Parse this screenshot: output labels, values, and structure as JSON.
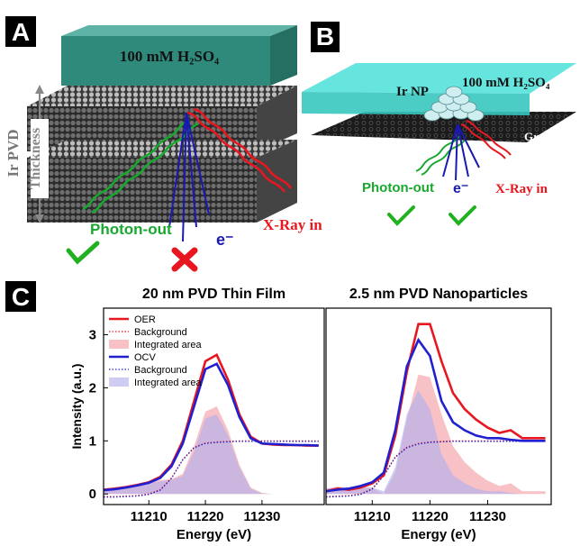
{
  "panel_labels": [
    "A",
    "B",
    "C"
  ],
  "schematic_a": {
    "electrolyte": "100 mM H₂SO₄",
    "material": "Ir PVD",
    "dimension": "Thickness",
    "photon_out": "Photon-out",
    "xray_in": "X-Ray in",
    "electron": "e⁻"
  },
  "schematic_b": {
    "particle": "Ir NP",
    "electrolyte": "100 mM H₂SO₄",
    "substrate": "Graphene",
    "photon_out": "Photon-out",
    "electron": "e⁻",
    "xray_in": "X-Ray in"
  },
  "chart_data": [
    {
      "type": "line",
      "title": "20 nm PVD Thin Film",
      "x_label": "Energy (eV)",
      "y_label": "Intensity (a.u.)",
      "x": [
        11202,
        11204,
        11206,
        11208,
        11210,
        11212,
        11214,
        11216,
        11218,
        11220,
        11222,
        11224,
        11226,
        11228,
        11230,
        11232,
        11234,
        11236,
        11238,
        11240
      ],
      "xlim": [
        11202,
        11241
      ],
      "xticks": [
        11210,
        11220,
        11230
      ],
      "ylim": [
        -0.2,
        3.5
      ],
      "yticks": [
        0,
        1,
        2,
        3
      ],
      "legend": "upper left",
      "series": [
        {
          "name": "Integrated area",
          "kind": "area",
          "color": "#f2a0a8",
          "values": [
            0.1,
            0.12,
            0.15,
            0.18,
            0.22,
            0.26,
            0.28,
            0.38,
            0.9,
            1.55,
            1.65,
            1.2,
            0.55,
            0.12,
            0.02,
            0,
            0,
            0,
            0,
            0
          ]
        },
        {
          "name": "Integrated area",
          "kind": "area",
          "color": "#b4b0ee",
          "values": [
            0.08,
            0.1,
            0.13,
            0.16,
            0.2,
            0.24,
            0.26,
            0.34,
            0.8,
            1.42,
            1.5,
            1.1,
            0.5,
            0.1,
            0.01,
            0,
            0,
            0,
            0,
            0
          ]
        },
        {
          "name": "Background",
          "kind": "dotted",
          "color": "#e8171f",
          "values": [
            -0.05,
            -0.05,
            -0.04,
            -0.03,
            0.0,
            0.08,
            0.3,
            0.65,
            0.88,
            0.96,
            0.98,
            0.99,
            1,
            1,
            1,
            1,
            1,
            1,
            1,
            1
          ]
        },
        {
          "name": "Background",
          "kind": "dotted",
          "color": "#2020d0",
          "values": [
            -0.06,
            -0.06,
            -0.05,
            -0.04,
            -0.01,
            0.07,
            0.29,
            0.64,
            0.87,
            0.95,
            0.97,
            0.98,
            0.99,
            0.99,
            0.99,
            0.99,
            0.99,
            0.99,
            0.99,
            0.99
          ]
        },
        {
          "name": "OER",
          "kind": "line",
          "color": "#e8171f",
          "values": [
            0.08,
            0.1,
            0.13,
            0.17,
            0.22,
            0.32,
            0.55,
            1.0,
            1.75,
            2.5,
            2.62,
            2.15,
            1.5,
            1.08,
            0.95,
            0.93,
            0.92,
            0.92,
            0.91,
            0.91
          ]
        },
        {
          "name": "OCV",
          "kind": "line",
          "color": "#2020d0",
          "values": [
            0.07,
            0.09,
            0.12,
            0.16,
            0.21,
            0.3,
            0.52,
            0.95,
            1.65,
            2.35,
            2.45,
            2.05,
            1.45,
            1.05,
            0.95,
            0.94,
            0.93,
            0.92,
            0.92,
            0.91
          ]
        }
      ],
      "legend_order": [
        4,
        2,
        0,
        5,
        3,
        1
      ]
    },
    {
      "type": "line",
      "title": "2.5 nm PVD Nanoparticles",
      "x_label": "Energy (eV)",
      "x": [
        11202,
        11204,
        11206,
        11208,
        11210,
        11212,
        11214,
        11216,
        11218,
        11220,
        11222,
        11224,
        11226,
        11228,
        11230,
        11232,
        11234,
        11236,
        11238,
        11240
      ],
      "xlim": [
        11202,
        11241
      ],
      "xticks": [
        11210,
        11220,
        11230
      ],
      "ylim": [
        -0.2,
        3.5
      ],
      "series": [
        {
          "kind": "area",
          "color": "#f2a0a8",
          "values": [
            0.1,
            0.14,
            0.11,
            0.12,
            0.1,
            0.0,
            0.4,
            1.4,
            2.25,
            2.2,
            1.5,
            0.9,
            0.6,
            0.4,
            0.25,
            0.15,
            0.2,
            0.05,
            0.05,
            0.05
          ]
        },
        {
          "kind": "area",
          "color": "#b4b0ee",
          "values": [
            0.1,
            0.12,
            0.13,
            0.15,
            0.12,
            0.05,
            0.5,
            1.5,
            1.95,
            1.6,
            0.75,
            0.35,
            0.2,
            0.1,
            0.05,
            0.05,
            0.02,
            0,
            0,
            0
          ]
        },
        {
          "kind": "dotted",
          "color": "#e8171f",
          "values": [
            -0.05,
            -0.04,
            -0.03,
            0,
            0.1,
            0.35,
            0.7,
            0.88,
            0.95,
            0.98,
            0.99,
            1,
            1,
            1,
            1,
            1,
            1,
            1,
            1,
            1
          ]
        },
        {
          "kind": "dotted",
          "color": "#2020d0",
          "values": [
            -0.06,
            -0.05,
            -0.04,
            -0.01,
            0.09,
            0.34,
            0.69,
            0.87,
            0.94,
            0.97,
            0.98,
            0.99,
            0.99,
            0.99,
            0.99,
            0.99,
            0.99,
            0.99,
            0.99,
            0.99
          ]
        },
        {
          "kind": "line",
          "color": "#e8171f",
          "values": [
            0.05,
            0.1,
            0.08,
            0.12,
            0.2,
            0.35,
            1.1,
            2.3,
            3.2,
            3.2,
            2.5,
            1.9,
            1.6,
            1.4,
            1.25,
            1.15,
            1.2,
            1.05,
            1.05,
            1.05
          ]
        },
        {
          "kind": "line",
          "color": "#2020d0",
          "values": [
            0.05,
            0.08,
            0.1,
            0.15,
            0.22,
            0.4,
            1.2,
            2.4,
            2.9,
            2.6,
            1.75,
            1.35,
            1.2,
            1.1,
            1.05,
            1.05,
            1.02,
            1.0,
            1.0,
            1.0
          ]
        }
      ]
    }
  ]
}
